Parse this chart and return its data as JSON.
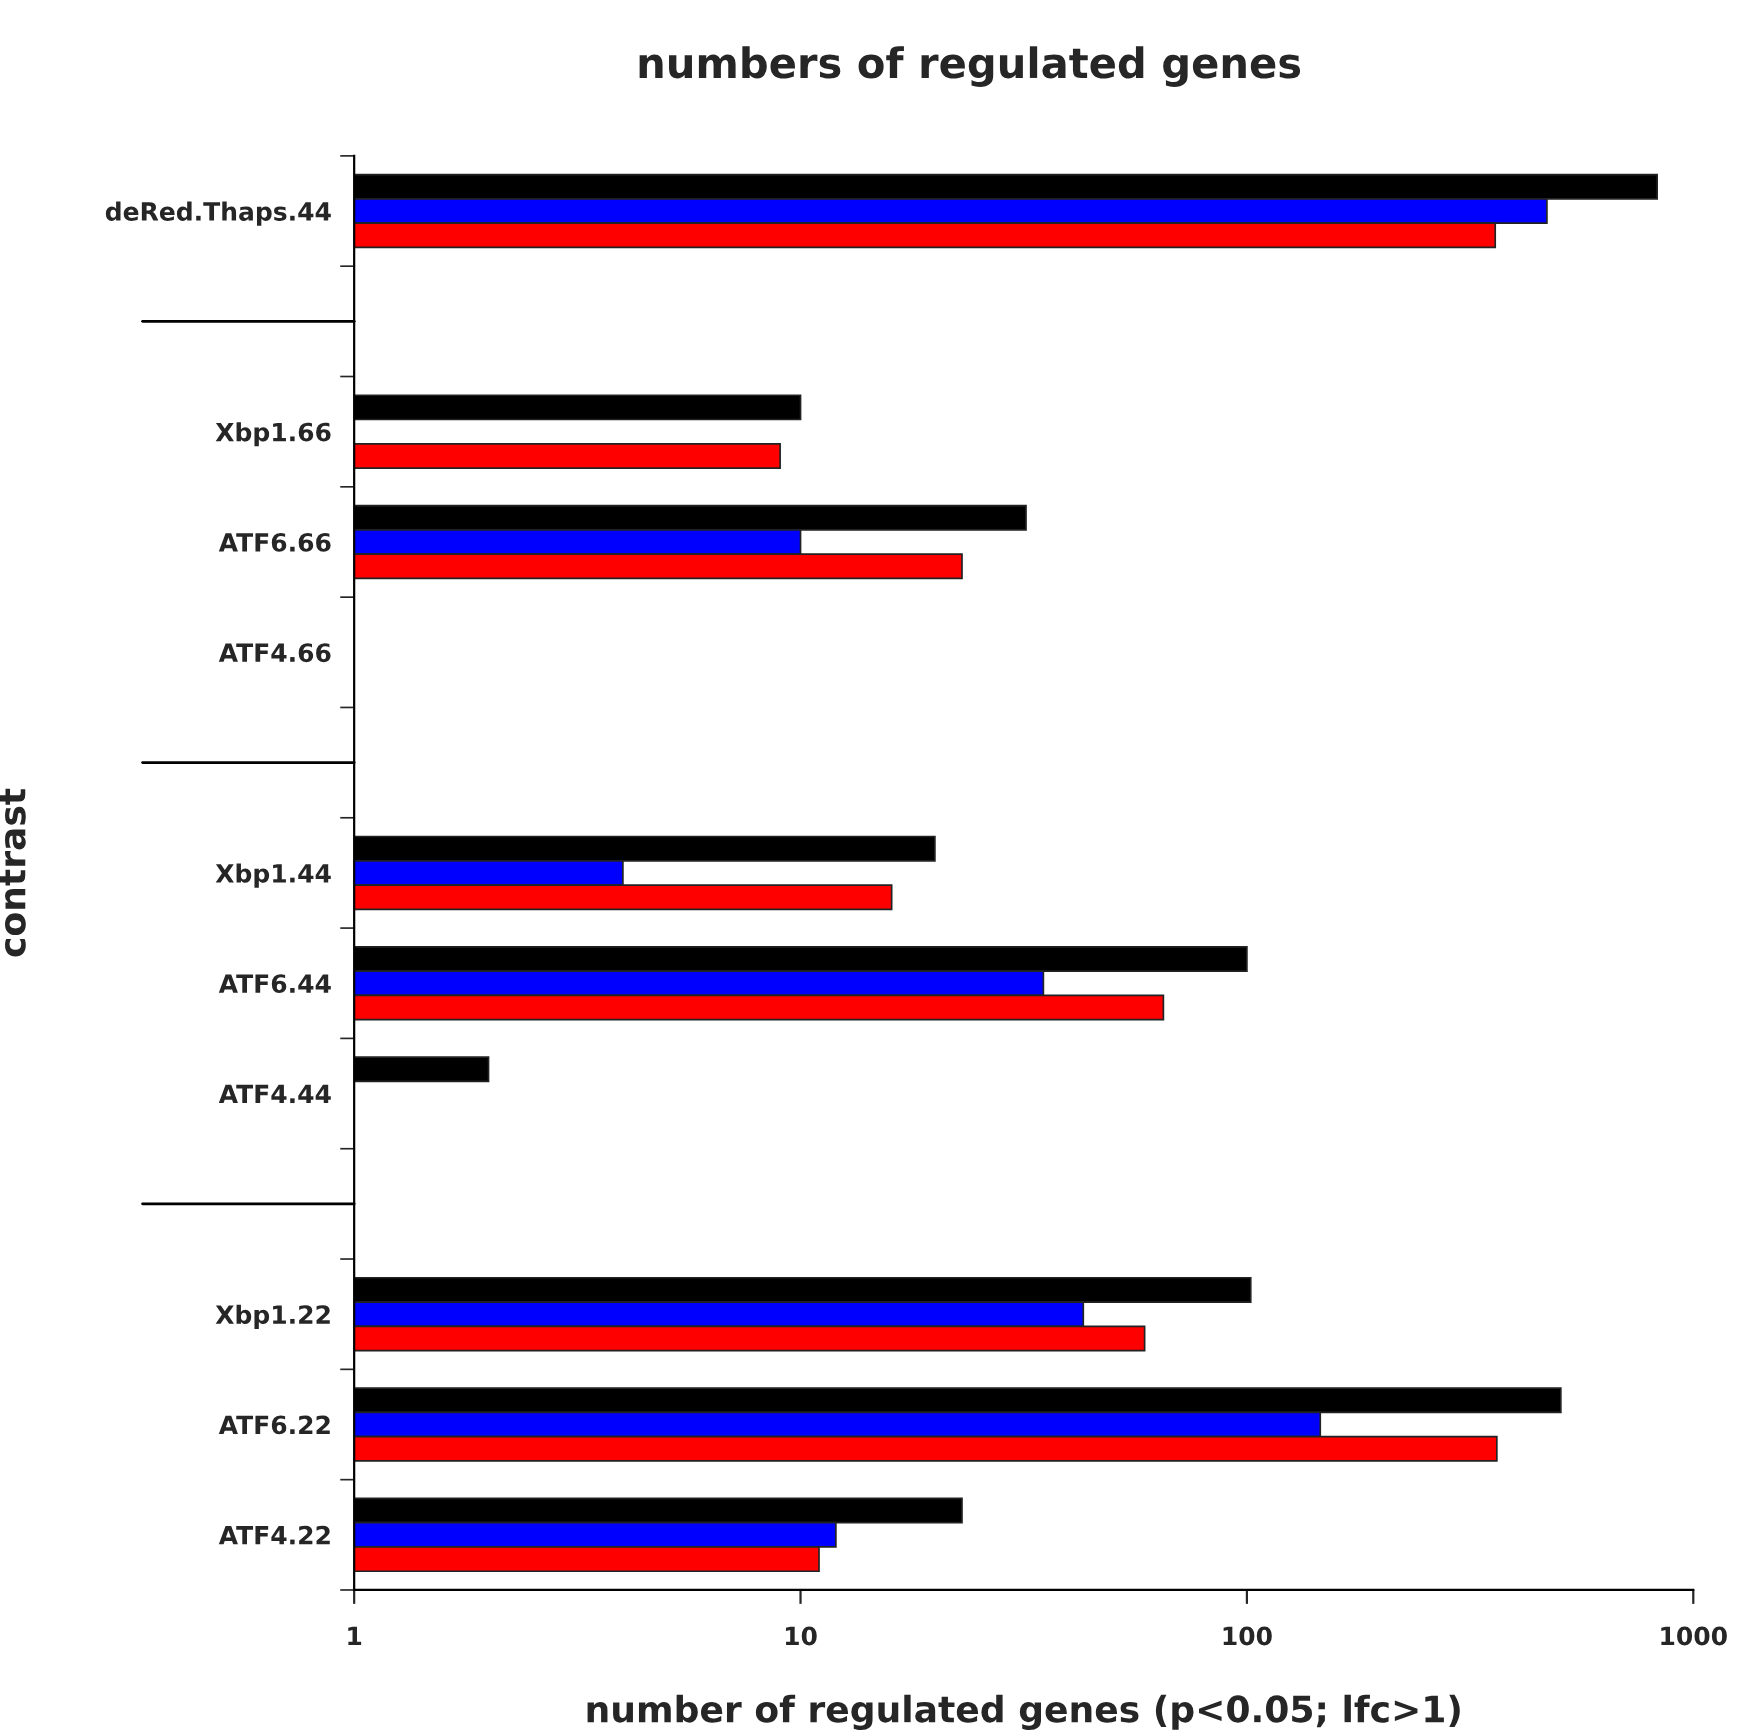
{
  "chart_data": {
    "type": "bar",
    "orientation": "horizontal",
    "title": "numbers of regulated genes",
    "xlabel": "number of regulated genes (p<0.05; lfc>1)",
    "ylabel": "contrast",
    "categories": [
      "deRed.Thaps.44",
      null,
      "Xbp1.66",
      "ATF6.66",
      "ATF4.66",
      null,
      "Xbp1.44",
      "ATF6.44",
      "ATF4.44",
      null,
      "Xbp1.22",
      "ATF6.22",
      "ATF4.22"
    ],
    "series": [
      {
        "color": "#000000",
        "values": [
          830,
          null,
          10,
          32,
          null,
          null,
          20,
          100,
          2,
          null,
          102,
          505,
          23
        ]
      },
      {
        "color": "#0000ff",
        "values": [
          470,
          null,
          null,
          10,
          null,
          null,
          4,
          35,
          null,
          null,
          43,
          146,
          12
        ]
      },
      {
        "color": "#ff0000",
        "values": [
          360,
          null,
          9,
          23,
          null,
          null,
          16,
          65,
          null,
          null,
          59,
          363,
          11
        ]
      }
    ],
    "log": "x",
    "xlim": [
      1,
      1000
    ],
    "xticks": [
      1,
      10,
      100,
      1000
    ],
    "grid": false,
    "legend": false
  }
}
